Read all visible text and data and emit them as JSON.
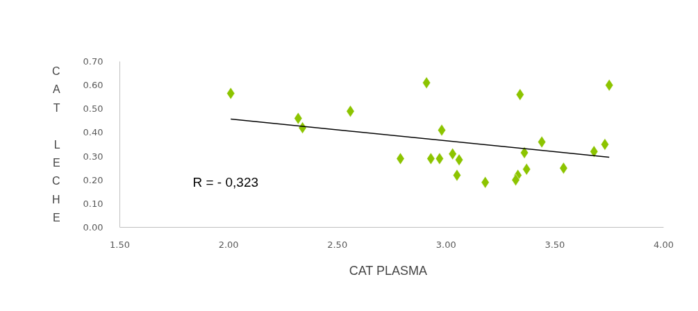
{
  "chart_data": {
    "type": "scatter",
    "xlabel": "CAT   PLASMA",
    "ylabel": "CAT LECHE",
    "marker": "diamond",
    "grid": false,
    "xlim": [
      1.5,
      4.0
    ],
    "ylim": [
      0.0,
      0.7
    ],
    "xticks": [
      {
        "value": 1.5,
        "label": "1.50"
      },
      {
        "value": 2.0,
        "label": "2.00"
      },
      {
        "value": 2.5,
        "label": "2.50"
      },
      {
        "value": 3.0,
        "label": "3.00"
      },
      {
        "value": 3.5,
        "label": "3.50"
      },
      {
        "value": 4.0,
        "label": "4.00"
      }
    ],
    "yticks": [
      {
        "value": 0.0,
        "label": "0.00"
      },
      {
        "value": 0.1,
        "label": "0.10"
      },
      {
        "value": 0.2,
        "label": "0.20"
      },
      {
        "value": 0.3,
        "label": "0.30"
      },
      {
        "value": 0.4,
        "label": "0.40"
      },
      {
        "value": 0.5,
        "label": "0.50"
      },
      {
        "value": 0.6,
        "label": "0.60"
      },
      {
        "value": 0.7,
        "label": "0.70"
      }
    ],
    "series": [
      {
        "color": "#8cc400",
        "x": [
          2.01,
          2.32,
          2.34,
          2.56,
          2.79,
          2.91,
          2.93,
          2.97,
          2.98,
          3.03,
          3.06,
          3.05,
          3.18,
          3.34,
          3.36,
          3.44,
          3.37,
          3.33,
          3.32,
          3.54,
          3.68,
          3.73,
          3.75
        ],
        "values": [
          0.565,
          0.46,
          0.42,
          0.49,
          0.29,
          0.61,
          0.29,
          0.29,
          0.41,
          0.31,
          0.285,
          0.22,
          0.19,
          0.56,
          0.315,
          0.36,
          0.245,
          0.22,
          0.2,
          0.25,
          0.32,
          0.35,
          0.6
        ]
      },
      {
        "type": "line",
        "marker": "none",
        "color": "#000000",
        "x": [
          2.01,
          3.75
        ],
        "values": [
          0.457,
          0.296
        ]
      }
    ],
    "annotations": [
      "R =   - 0,323"
    ]
  }
}
